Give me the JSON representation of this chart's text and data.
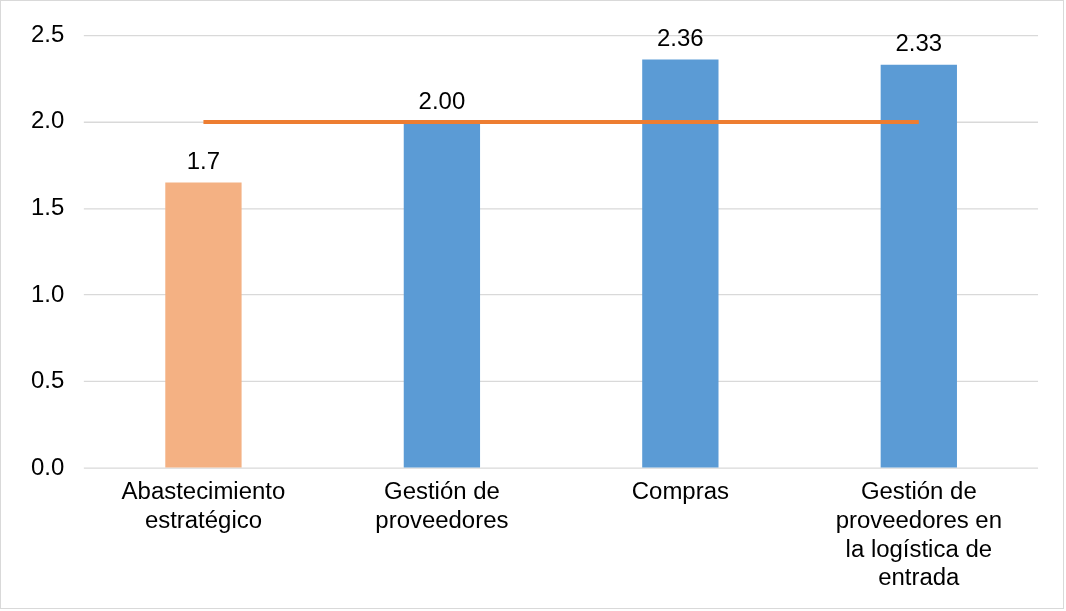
{
  "chart_data": {
    "type": "bar",
    "categories": [
      "Abastecimiento estratégico",
      "Gestión de proveedores",
      "Compras",
      "Gestión de proveedores en la logística de entrada"
    ],
    "series": [
      {
        "colors": [
          "#f4b183",
          "#5b9bd5",
          "#5b9bd5",
          "#5b9bd5"
        ],
        "values": [
          1.65,
          2.0,
          2.36,
          2.33
        ],
        "value_labels": [
          "1.7",
          "2.00",
          "2.36",
          "2.33"
        ]
      },
      {
        "type": "line",
        "color": "#ed7d31",
        "values": [
          2.0,
          2.0,
          2.0,
          2.0
        ],
        "marker": "none"
      }
    ],
    "ylim": [
      0,
      2.5
    ],
    "yticks": [
      {
        "value": 0,
        "label": "0.0"
      },
      {
        "value": 0.5,
        "label": "0.5"
      },
      {
        "value": 1,
        "label": "1.0"
      },
      {
        "value": 1.5,
        "label": "1.5"
      },
      {
        "value": 2,
        "label": "2.0"
      },
      {
        "value": 2.5,
        "label": "2.5"
      }
    ],
    "grid": "y",
    "legend": false
  }
}
